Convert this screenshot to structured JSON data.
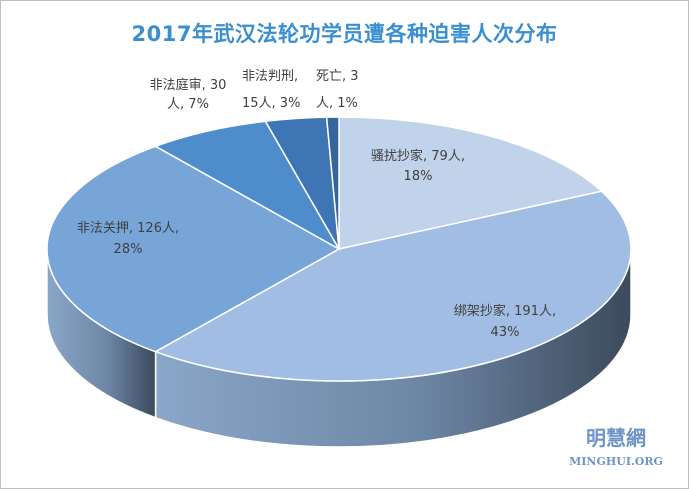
{
  "chart_data": {
    "type": "pie",
    "title": "2017年武汉法轮功学员遭各种迫害人次分布",
    "slices": [
      {
        "category": "骚扰抄家",
        "count": 79,
        "percent": 18,
        "text": "骚扰抄家, 79人,",
        "pct_text": "18%",
        "color": "#c0d3ea"
      },
      {
        "category": "绑架抄家",
        "count": 191,
        "percent": 43,
        "text": "绑架抄家, 191人,",
        "pct_text": "43%",
        "color": "#a1bde3"
      },
      {
        "category": "非法关押",
        "count": 126,
        "percent": 28,
        "text": "非法关押, 126人,",
        "pct_text": "28%",
        "color": "#78a5d8"
      },
      {
        "category": "非法庭审",
        "count": 30,
        "percent": 7,
        "text": "非法庭审, 30",
        "pct_text": "人, 7%",
        "color": "#4e8ccc"
      },
      {
        "category": "非法判刑",
        "count": 15,
        "percent": 3,
        "text": "非法判刑,",
        "pct_text": "15人, 3%",
        "color": "#3e75b4"
      },
      {
        "category": "死亡",
        "count": 3,
        "percent": 1,
        "text": "死亡, 3",
        "pct_text": "人, 1%",
        "color": "#34659c"
      }
    ]
  },
  "watermark": {
    "chinese": "明慧網",
    "english": "MINGHUI.ORG"
  }
}
